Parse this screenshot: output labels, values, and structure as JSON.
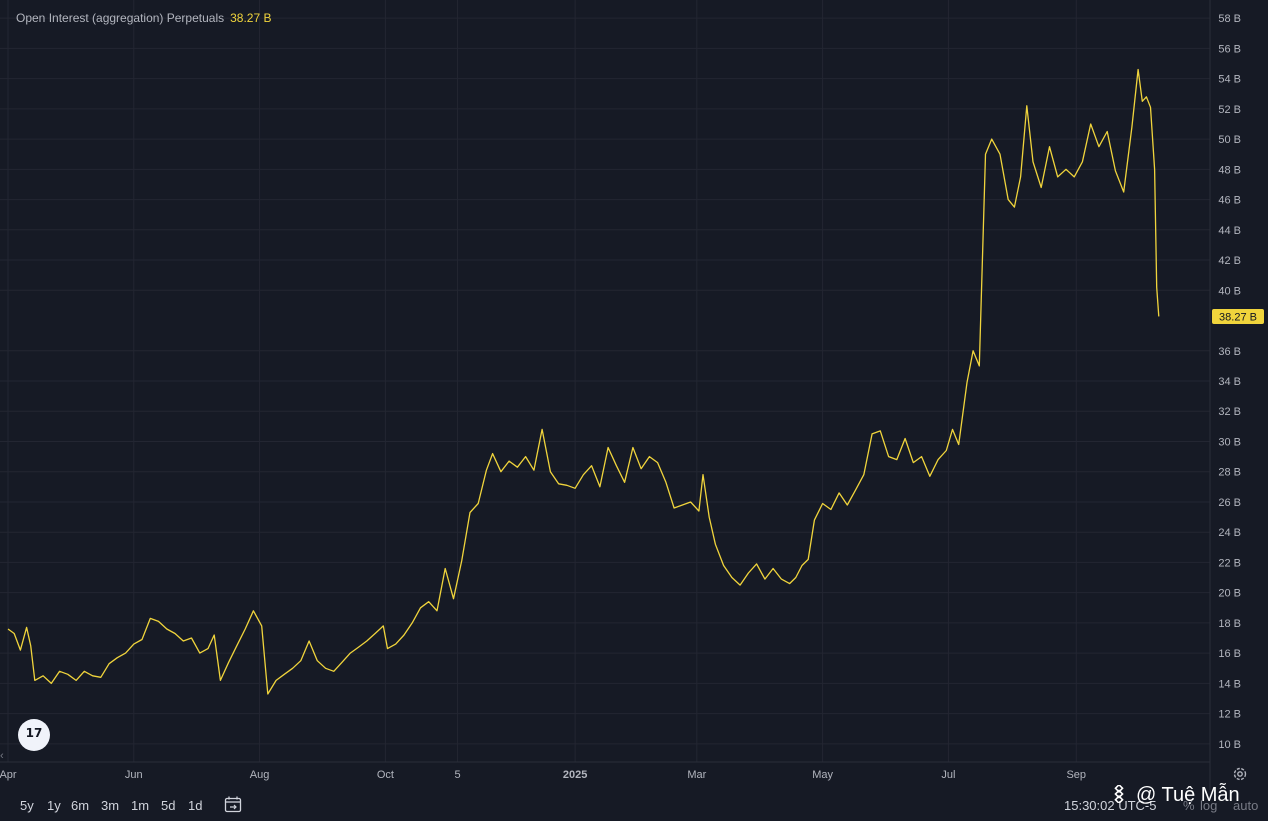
{
  "legend": {
    "name": "Open Interest (aggregation) Perpetuals",
    "value": "38.27 B"
  },
  "timeframes": [
    "5y",
    "1y",
    "6m",
    "3m",
    "1m",
    "5d",
    "1d"
  ],
  "status": {
    "time": "15:30:02 UTC-5",
    "percent": "%",
    "log": "log",
    "auto": "auto"
  },
  "watermark": "@ Tuệ Mẫn",
  "tv_logo": "17",
  "colors": {
    "background": "#161a25",
    "line": "#f0d43c",
    "grid": "#232632",
    "axis_text": "#b2b5be"
  },
  "chart_data": {
    "type": "line",
    "title": "Open Interest (aggregation) Perpetuals",
    "y_unit": "B",
    "ylim": [
      8.8,
      59.2
    ],
    "y_ticks": [
      "58 B",
      "56 B",
      "54 B",
      "52 B",
      "50 B",
      "48 B",
      "46 B",
      "44 B",
      "42 B",
      "40 B",
      "36 B",
      "34 B",
      "32 B",
      "30 B",
      "28 B",
      "26 B",
      "24 B",
      "22 B",
      "20 B",
      "18 B",
      "16 B",
      "14 B",
      "12 B",
      "10 B"
    ],
    "y_tick_values": [
      58,
      56,
      54,
      52,
      50,
      48,
      46,
      44,
      42,
      40,
      36,
      34,
      32,
      30,
      28,
      26,
      24,
      22,
      20,
      18,
      16,
      14,
      12,
      10
    ],
    "x_ticks": [
      {
        "label": "Apr",
        "date": "2024-04-01"
      },
      {
        "label": "Jun",
        "date": "2024-06-01"
      },
      {
        "label": "Aug",
        "date": "2024-08-01"
      },
      {
        "label": "Oct",
        "date": "2024-10-01"
      },
      {
        "label": "5",
        "date": "2024-11-05"
      },
      {
        "label": "2025",
        "date": "2025-01-01"
      },
      {
        "label": "Mar",
        "date": "2025-03-01"
      },
      {
        "label": "May",
        "date": "2025-05-01"
      },
      {
        "label": "Jul",
        "date": "2025-07-01"
      },
      {
        "label": "Sep",
        "date": "2025-09-01"
      }
    ],
    "xlim": [
      "2024-04-01",
      "2025-10-31"
    ],
    "last_value_label": "38.27 B",
    "grid": true,
    "series": [
      {
        "values": [
          [
            "2024-04-01",
            17.6
          ],
          [
            "2024-04-04",
            17.3
          ],
          [
            "2024-04-07",
            16.2
          ],
          [
            "2024-04-10",
            17.7
          ],
          [
            "2024-04-12",
            16.5
          ],
          [
            "2024-04-14",
            14.2
          ],
          [
            "2024-04-18",
            14.5
          ],
          [
            "2024-04-22",
            14.0
          ],
          [
            "2024-04-26",
            14.8
          ],
          [
            "2024-04-30",
            14.6
          ],
          [
            "2024-05-04",
            14.2
          ],
          [
            "2024-05-08",
            14.8
          ],
          [
            "2024-05-12",
            14.5
          ],
          [
            "2024-05-16",
            14.4
          ],
          [
            "2024-05-20",
            15.3
          ],
          [
            "2024-05-24",
            15.7
          ],
          [
            "2024-05-28",
            16.0
          ],
          [
            "2024-06-01",
            16.6
          ],
          [
            "2024-06-05",
            16.9
          ],
          [
            "2024-06-09",
            18.3
          ],
          [
            "2024-06-13",
            18.1
          ],
          [
            "2024-06-17",
            17.6
          ],
          [
            "2024-06-21",
            17.3
          ],
          [
            "2024-06-25",
            16.8
          ],
          [
            "2024-06-29",
            17.0
          ],
          [
            "2024-07-03",
            16.0
          ],
          [
            "2024-07-07",
            16.3
          ],
          [
            "2024-07-10",
            17.2
          ],
          [
            "2024-07-13",
            14.2
          ],
          [
            "2024-07-17",
            15.4
          ],
          [
            "2024-07-21",
            16.5
          ],
          [
            "2024-07-25",
            17.6
          ],
          [
            "2024-07-29",
            18.8
          ],
          [
            "2024-08-02",
            17.8
          ],
          [
            "2024-08-05",
            13.3
          ],
          [
            "2024-08-09",
            14.2
          ],
          [
            "2024-08-13",
            14.6
          ],
          [
            "2024-08-17",
            15.0
          ],
          [
            "2024-08-21",
            15.5
          ],
          [
            "2024-08-25",
            16.8
          ],
          [
            "2024-08-29",
            15.5
          ],
          [
            "2024-09-02",
            15.0
          ],
          [
            "2024-09-06",
            14.8
          ],
          [
            "2024-09-10",
            15.4
          ],
          [
            "2024-09-14",
            16.0
          ],
          [
            "2024-09-18",
            16.4
          ],
          [
            "2024-09-22",
            16.8
          ],
          [
            "2024-09-26",
            17.3
          ],
          [
            "2024-09-30",
            17.8
          ],
          [
            "2024-10-02",
            16.3
          ],
          [
            "2024-10-06",
            16.6
          ],
          [
            "2024-10-10",
            17.2
          ],
          [
            "2024-10-14",
            18.0
          ],
          [
            "2024-10-18",
            19.0
          ],
          [
            "2024-10-22",
            19.4
          ],
          [
            "2024-10-26",
            18.8
          ],
          [
            "2024-10-30",
            21.6
          ],
          [
            "2024-11-03",
            19.6
          ],
          [
            "2024-11-07",
            22.1
          ],
          [
            "2024-11-11",
            25.3
          ],
          [
            "2024-11-15",
            25.9
          ],
          [
            "2024-11-19",
            28.1
          ],
          [
            "2024-11-22",
            29.2
          ],
          [
            "2024-11-26",
            28.0
          ],
          [
            "2024-11-30",
            28.7
          ],
          [
            "2024-12-04",
            28.3
          ],
          [
            "2024-12-08",
            29.0
          ],
          [
            "2024-12-12",
            28.1
          ],
          [
            "2024-12-16",
            30.8
          ],
          [
            "2024-12-20",
            28.0
          ],
          [
            "2024-12-24",
            27.2
          ],
          [
            "2024-12-28",
            27.1
          ],
          [
            "2025-01-01",
            26.9
          ],
          [
            "2025-01-05",
            27.8
          ],
          [
            "2025-01-09",
            28.4
          ],
          [
            "2025-01-13",
            27.0
          ],
          [
            "2025-01-17",
            29.6
          ],
          [
            "2025-01-21",
            28.4
          ],
          [
            "2025-01-25",
            27.3
          ],
          [
            "2025-01-29",
            29.6
          ],
          [
            "2025-02-02",
            28.2
          ],
          [
            "2025-02-06",
            29.0
          ],
          [
            "2025-02-10",
            28.6
          ],
          [
            "2025-02-14",
            27.3
          ],
          [
            "2025-02-18",
            25.6
          ],
          [
            "2025-02-22",
            25.8
          ],
          [
            "2025-02-26",
            26.0
          ],
          [
            "2025-03-02",
            25.4
          ],
          [
            "2025-03-04",
            27.8
          ],
          [
            "2025-03-07",
            25.0
          ],
          [
            "2025-03-10",
            23.2
          ],
          [
            "2025-03-14",
            21.8
          ],
          [
            "2025-03-18",
            21.0
          ],
          [
            "2025-03-22",
            20.5
          ],
          [
            "2025-03-26",
            21.3
          ],
          [
            "2025-03-30",
            21.9
          ],
          [
            "2025-04-03",
            20.9
          ],
          [
            "2025-04-07",
            21.6
          ],
          [
            "2025-04-11",
            20.9
          ],
          [
            "2025-04-15",
            20.6
          ],
          [
            "2025-04-18",
            21.0
          ],
          [
            "2025-04-21",
            21.8
          ],
          [
            "2025-04-24",
            22.2
          ],
          [
            "2025-04-27",
            24.8
          ],
          [
            "2025-05-01",
            25.9
          ],
          [
            "2025-05-05",
            25.5
          ],
          [
            "2025-05-09",
            26.6
          ],
          [
            "2025-05-13",
            25.8
          ],
          [
            "2025-05-17",
            26.8
          ],
          [
            "2025-05-21",
            27.8
          ],
          [
            "2025-05-25",
            30.5
          ],
          [
            "2025-05-29",
            30.7
          ],
          [
            "2025-06-02",
            29.0
          ],
          [
            "2025-06-06",
            28.8
          ],
          [
            "2025-06-10",
            30.2
          ],
          [
            "2025-06-14",
            28.6
          ],
          [
            "2025-06-18",
            29.0
          ],
          [
            "2025-06-22",
            27.7
          ],
          [
            "2025-06-26",
            28.8
          ],
          [
            "2025-06-30",
            29.4
          ],
          [
            "2025-07-03",
            30.8
          ],
          [
            "2025-07-06",
            29.8
          ],
          [
            "2025-07-10",
            33.9
          ],
          [
            "2025-07-13",
            36.0
          ],
          [
            "2025-07-16",
            35.0
          ],
          [
            "2025-07-19",
            49.0
          ],
          [
            "2025-07-22",
            50.0
          ],
          [
            "2025-07-26",
            49.0
          ],
          [
            "2025-07-30",
            46.0
          ],
          [
            "2025-08-02",
            45.5
          ],
          [
            "2025-08-05",
            47.5
          ],
          [
            "2025-08-08",
            52.2
          ],
          [
            "2025-08-11",
            48.5
          ],
          [
            "2025-08-15",
            46.8
          ],
          [
            "2025-08-19",
            49.5
          ],
          [
            "2025-08-23",
            47.5
          ],
          [
            "2025-08-27",
            48.0
          ],
          [
            "2025-08-31",
            47.5
          ],
          [
            "2025-09-04",
            48.5
          ],
          [
            "2025-09-08",
            51.0
          ],
          [
            "2025-09-12",
            49.5
          ],
          [
            "2025-09-16",
            50.5
          ],
          [
            "2025-09-20",
            47.9
          ],
          [
            "2025-09-24",
            46.5
          ],
          [
            "2025-09-28",
            50.8
          ],
          [
            "2025-10-01",
            54.6
          ],
          [
            "2025-10-03",
            52.5
          ],
          [
            "2025-10-05",
            52.8
          ],
          [
            "2025-10-07",
            52.1
          ],
          [
            "2025-10-09",
            48.0
          ],
          [
            "2025-10-10",
            40.2
          ],
          [
            "2025-10-11",
            38.27
          ]
        ]
      }
    ]
  }
}
